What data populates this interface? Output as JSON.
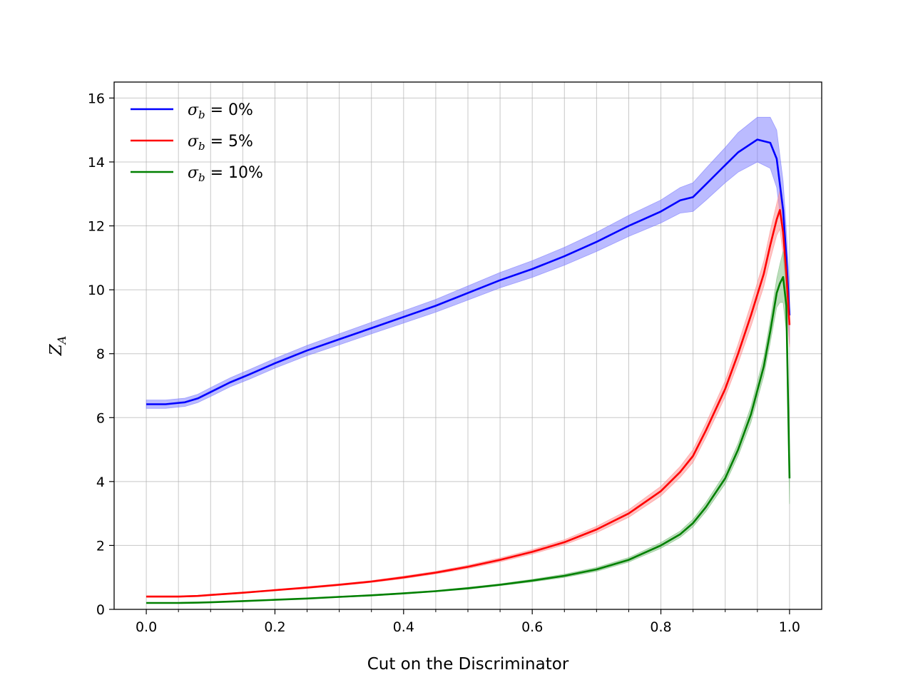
{
  "chart_data": {
    "type": "line",
    "title": "",
    "xlabel": "Cut on the Discriminator",
    "ylabel": "Z_A",
    "ylabel_main": "Z",
    "ylabel_sub": "A",
    "xlim": [
      -0.05,
      1.05
    ],
    "ylim": [
      0,
      16.5
    ],
    "xticks": [
      0.0,
      0.2,
      0.4,
      0.6,
      0.8,
      1.0
    ],
    "xtick_labels": [
      "0.0",
      "0.2",
      "0.4",
      "0.6",
      "0.8",
      "1.0"
    ],
    "xminor": [
      0.05,
      0.1,
      0.15,
      0.25,
      0.3,
      0.35,
      0.45,
      0.5,
      0.55,
      0.65,
      0.7,
      0.75,
      0.85,
      0.9,
      0.95
    ],
    "yticks": [
      0,
      2,
      4,
      6,
      8,
      10,
      12,
      14,
      16
    ],
    "ytick_labels": [
      "0",
      "2",
      "4",
      "6",
      "8",
      "10",
      "12",
      "14",
      "16"
    ],
    "grid": true,
    "legend_position": "top-left",
    "series": [
      {
        "name": "σ_b = 0%",
        "label_sigma": "σ",
        "label_sub": "b",
        "label_rest": " = 0%",
        "color": "#0000ff",
        "band_color": "#7777ff",
        "x": [
          0.0,
          0.03,
          0.06,
          0.08,
          0.1,
          0.13,
          0.16,
          0.2,
          0.25,
          0.3,
          0.35,
          0.4,
          0.45,
          0.5,
          0.55,
          0.6,
          0.65,
          0.7,
          0.75,
          0.8,
          0.83,
          0.85,
          0.87,
          0.9,
          0.92,
          0.95,
          0.97,
          0.98,
          0.99,
          0.995,
          1.0
        ],
        "y": [
          6.42,
          6.42,
          6.48,
          6.6,
          6.8,
          7.1,
          7.35,
          7.7,
          8.1,
          8.45,
          8.8,
          9.15,
          9.5,
          9.9,
          10.3,
          10.65,
          11.05,
          11.5,
          12.0,
          12.45,
          12.8,
          12.9,
          13.3,
          13.9,
          14.3,
          14.7,
          14.6,
          14.1,
          12.5,
          11.0,
          9.2
        ],
        "err": [
          0.13,
          0.13,
          0.13,
          0.13,
          0.14,
          0.14,
          0.15,
          0.15,
          0.16,
          0.17,
          0.18,
          0.19,
          0.2,
          0.22,
          0.24,
          0.26,
          0.28,
          0.3,
          0.33,
          0.36,
          0.4,
          0.45,
          0.5,
          0.55,
          0.62,
          0.7,
          0.8,
          0.9,
          0.9,
          0.9,
          0.9
        ]
      },
      {
        "name": "σ_b = 5%",
        "label_sigma": "σ",
        "label_sub": "b",
        "label_rest": " = 5%",
        "color": "#ff0000",
        "band_color": "#ff8888",
        "x": [
          0.0,
          0.05,
          0.08,
          0.1,
          0.15,
          0.2,
          0.25,
          0.3,
          0.35,
          0.4,
          0.45,
          0.5,
          0.55,
          0.6,
          0.65,
          0.7,
          0.75,
          0.8,
          0.83,
          0.85,
          0.87,
          0.9,
          0.92,
          0.94,
          0.96,
          0.97,
          0.98,
          0.985,
          0.99,
          0.995,
          1.0
        ],
        "y": [
          0.4,
          0.4,
          0.42,
          0.45,
          0.52,
          0.6,
          0.68,
          0.77,
          0.87,
          1.0,
          1.15,
          1.33,
          1.55,
          1.8,
          2.1,
          2.5,
          3.0,
          3.7,
          4.3,
          4.8,
          5.6,
          6.9,
          8.0,
          9.2,
          10.5,
          11.4,
          12.2,
          12.5,
          11.8,
          10.5,
          8.9
        ],
        "err": [
          0.02,
          0.02,
          0.02,
          0.02,
          0.02,
          0.02,
          0.03,
          0.03,
          0.03,
          0.04,
          0.04,
          0.05,
          0.06,
          0.07,
          0.08,
          0.1,
          0.12,
          0.15,
          0.17,
          0.2,
          0.22,
          0.25,
          0.3,
          0.35,
          0.4,
          0.45,
          0.5,
          0.6,
          0.7,
          0.7,
          0.7
        ]
      },
      {
        "name": "σ_b = 10%",
        "label_sigma": "σ",
        "label_sub": "b",
        "label_rest": " = 10%",
        "color": "#008000",
        "band_color": "#77bb77",
        "x": [
          0.0,
          0.05,
          0.08,
          0.1,
          0.15,
          0.2,
          0.25,
          0.3,
          0.35,
          0.4,
          0.45,
          0.5,
          0.55,
          0.6,
          0.65,
          0.7,
          0.75,
          0.8,
          0.83,
          0.85,
          0.87,
          0.9,
          0.92,
          0.94,
          0.96,
          0.97,
          0.98,
          0.985,
          0.99,
          0.995,
          1.0
        ],
        "y": [
          0.2,
          0.2,
          0.21,
          0.22,
          0.26,
          0.3,
          0.34,
          0.39,
          0.44,
          0.5,
          0.57,
          0.66,
          0.77,
          0.9,
          1.05,
          1.25,
          1.55,
          2.0,
          2.35,
          2.7,
          3.2,
          4.1,
          5.0,
          6.1,
          7.6,
          8.7,
          9.9,
          10.2,
          10.4,
          9.5,
          4.1
        ],
        "err": [
          0.01,
          0.01,
          0.01,
          0.01,
          0.01,
          0.01,
          0.01,
          0.02,
          0.02,
          0.02,
          0.02,
          0.03,
          0.03,
          0.04,
          0.05,
          0.06,
          0.07,
          0.09,
          0.1,
          0.12,
          0.14,
          0.17,
          0.2,
          0.25,
          0.3,
          0.35,
          0.45,
          0.6,
          0.8,
          0.8,
          0.8
        ]
      }
    ]
  }
}
